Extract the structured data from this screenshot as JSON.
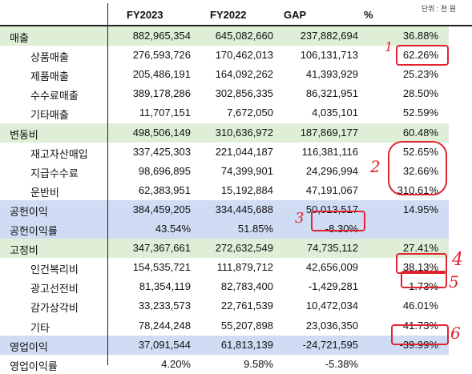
{
  "unit_label": "단위 : 천 원",
  "headers": [
    "FY2023",
    "FY2022",
    "GAP",
    "%"
  ],
  "rows": [
    {
      "label": "매출",
      "fy2023": "882,965,354",
      "fy2022": "645,082,660",
      "gap": "237,882,694",
      "pct": "36.88%",
      "style": "green"
    },
    {
      "label": "상품매출",
      "fy2023": "276,593,726",
      "fy2022": "170,462,013",
      "gap": "106,131,713",
      "pct": "62.26%",
      "style": "plain"
    },
    {
      "label": "제품매출",
      "fy2023": "205,486,191",
      "fy2022": "164,092,262",
      "gap": "41,393,929",
      "pct": "25.23%",
      "style": "plain"
    },
    {
      "label": "수수료매출",
      "fy2023": "389,178,286",
      "fy2022": "302,856,335",
      "gap": "86,321,951",
      "pct": "28.50%",
      "style": "plain"
    },
    {
      "label": "기타매출",
      "fy2023": "11,707,151",
      "fy2022": "7,672,050",
      "gap": "4,035,101",
      "pct": "52.59%",
      "style": "plain"
    },
    {
      "label": "변동비",
      "fy2023": "498,506,149",
      "fy2022": "310,636,972",
      "gap": "187,869,177",
      "pct": "60.48%",
      "style": "green"
    },
    {
      "label": "재고자산매입",
      "fy2023": "337,425,303",
      "fy2022": "221,044,187",
      "gap": "116,381,116",
      "pct": "52.65%",
      "style": "plain"
    },
    {
      "label": "지급수수료",
      "fy2023": "98,696,895",
      "fy2022": "74,399,901",
      "gap": "24,296,994",
      "pct": "32.66%",
      "style": "plain"
    },
    {
      "label": "운반비",
      "fy2023": "62,383,951",
      "fy2022": "15,192,884",
      "gap": "47,191,067",
      "pct": "310.61%",
      "style": "plain"
    },
    {
      "label": "공헌이익",
      "fy2023": "384,459,205",
      "fy2022": "334,445,688",
      "gap": "50,013,517",
      "pct": "14.95%",
      "style": "blue"
    },
    {
      "label": "공헌이익률",
      "fy2023": "43.54%",
      "fy2022": "51.85%",
      "gap": "-8.30%",
      "pct": "",
      "style": "blue"
    },
    {
      "label": "고정비",
      "fy2023": "347,367,661",
      "fy2022": "272,632,549",
      "gap": "74,735,112",
      "pct": "27.41%",
      "style": "green"
    },
    {
      "label": "인건복리비",
      "fy2023": "154,535,721",
      "fy2022": "111,879,712",
      "gap": "42,656,009",
      "pct": "38.13%",
      "style": "plain"
    },
    {
      "label": "광고선전비",
      "fy2023": "81,354,119",
      "fy2022": "82,783,400",
      "gap": "-1,429,281",
      "pct": "-1.73%",
      "style": "plain"
    },
    {
      "label": "감가상각비",
      "fy2023": "33,233,573",
      "fy2022": "22,761,539",
      "gap": "10,472,034",
      "pct": "46.01%",
      "style": "plain"
    },
    {
      "label": "기타",
      "fy2023": "78,244,248",
      "fy2022": "55,207,898",
      "gap": "23,036,350",
      "pct": "41.73%",
      "style": "plain"
    },
    {
      "label": "영업이익",
      "fy2023": "37,091,544",
      "fy2022": "61,813,139",
      "gap": "-24,721,595",
      "pct": "-39.99%",
      "style": "blue"
    },
    {
      "label": "영업이익률",
      "fy2023": "4.20%",
      "fy2022": "9.58%",
      "gap": "-5.38%",
      "pct": "",
      "style": "plain"
    }
  ],
  "annotations": [
    "1",
    "2",
    "3",
    "4",
    "5",
    "6"
  ],
  "highlight_color": "#e0242f"
}
